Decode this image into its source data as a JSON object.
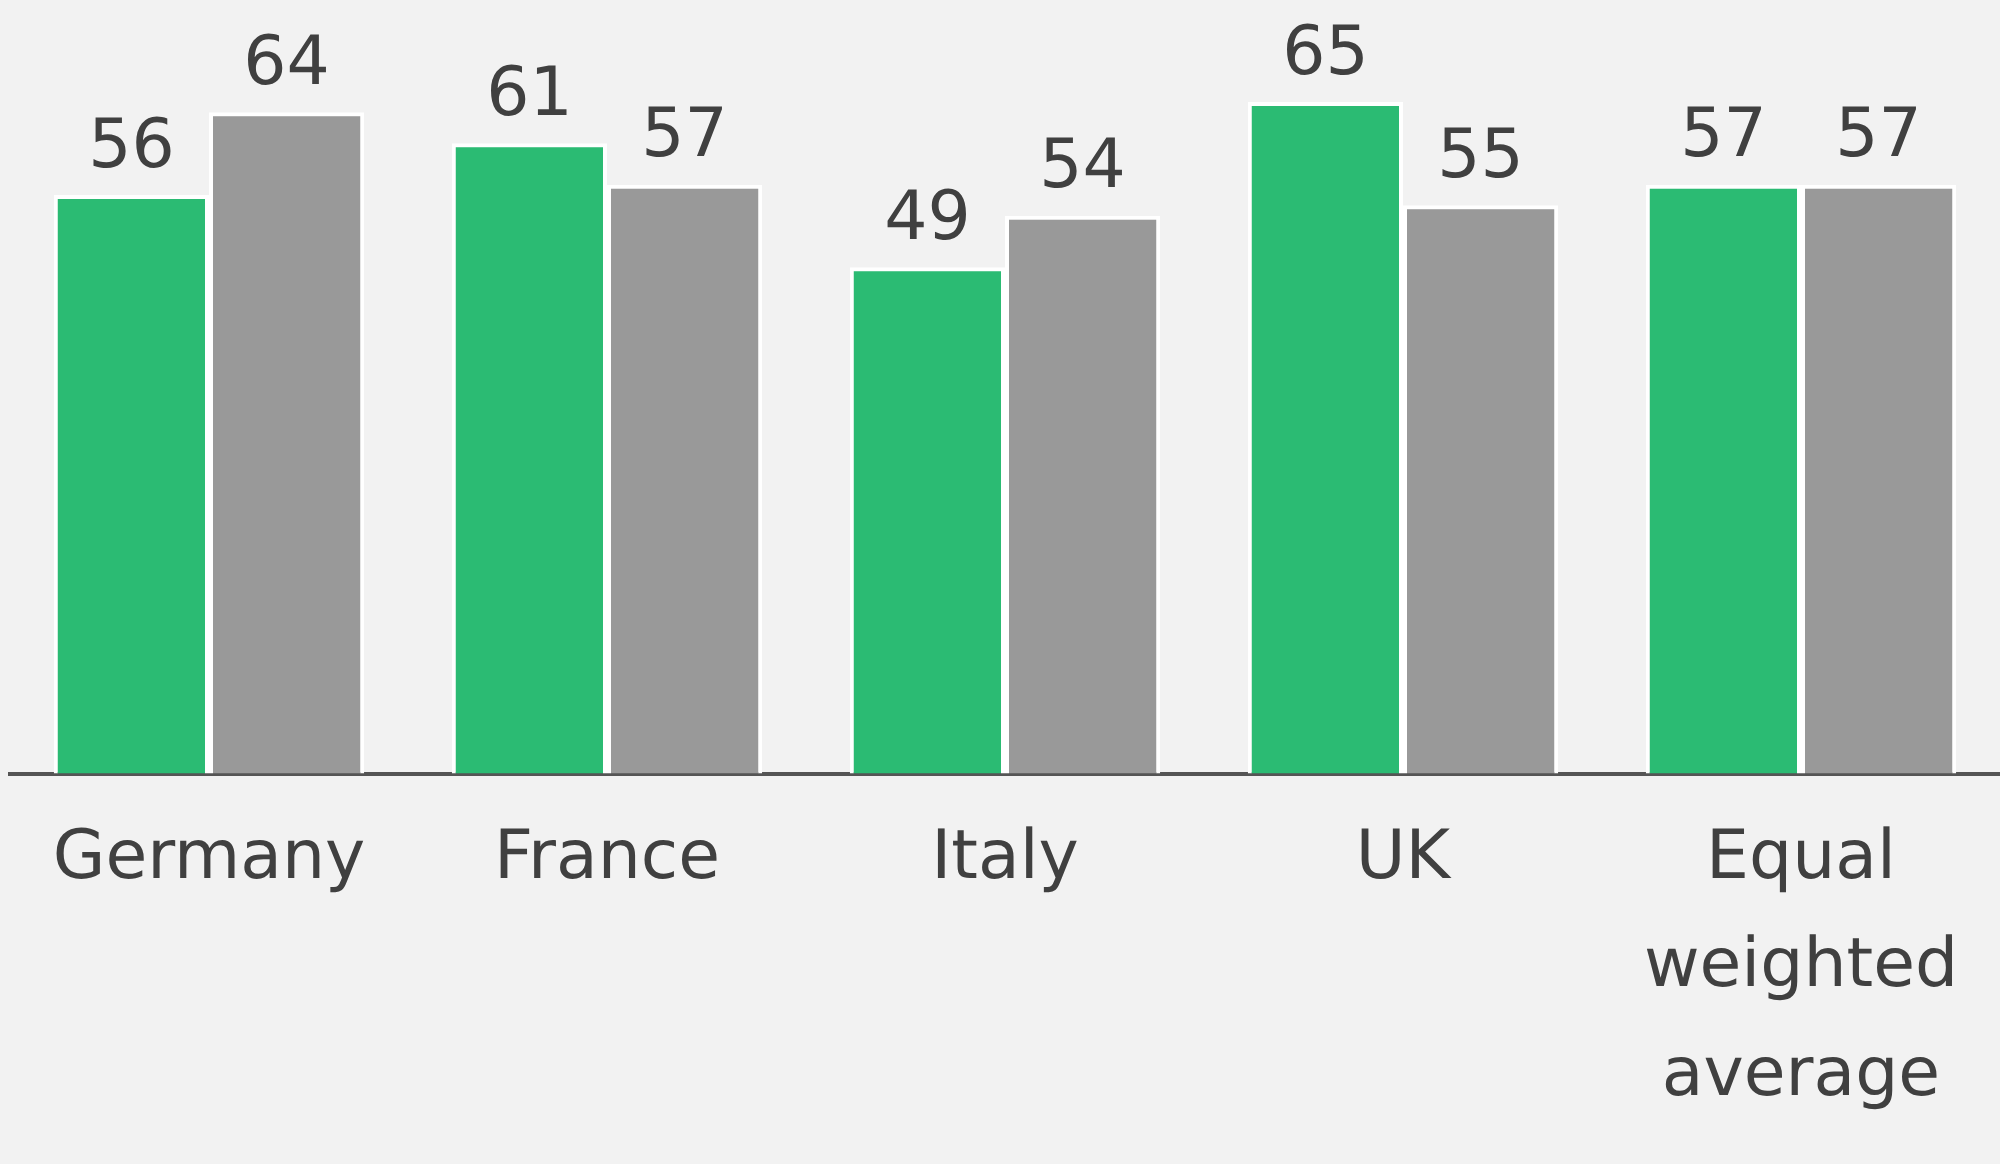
{
  "chart_data": {
    "type": "bar",
    "categories": [
      "Germany",
      "France",
      "Italy",
      "UK",
      "Equal weighted average"
    ],
    "series": [
      {
        "color": "#2bbb73",
        "values": [
          56,
          61,
          49,
          65,
          57
        ]
      },
      {
        "color": "#999999",
        "values": [
          64,
          57,
          54,
          55,
          57
        ]
      }
    ],
    "data_labels": true,
    "grid": false,
    "legend": false
  }
}
